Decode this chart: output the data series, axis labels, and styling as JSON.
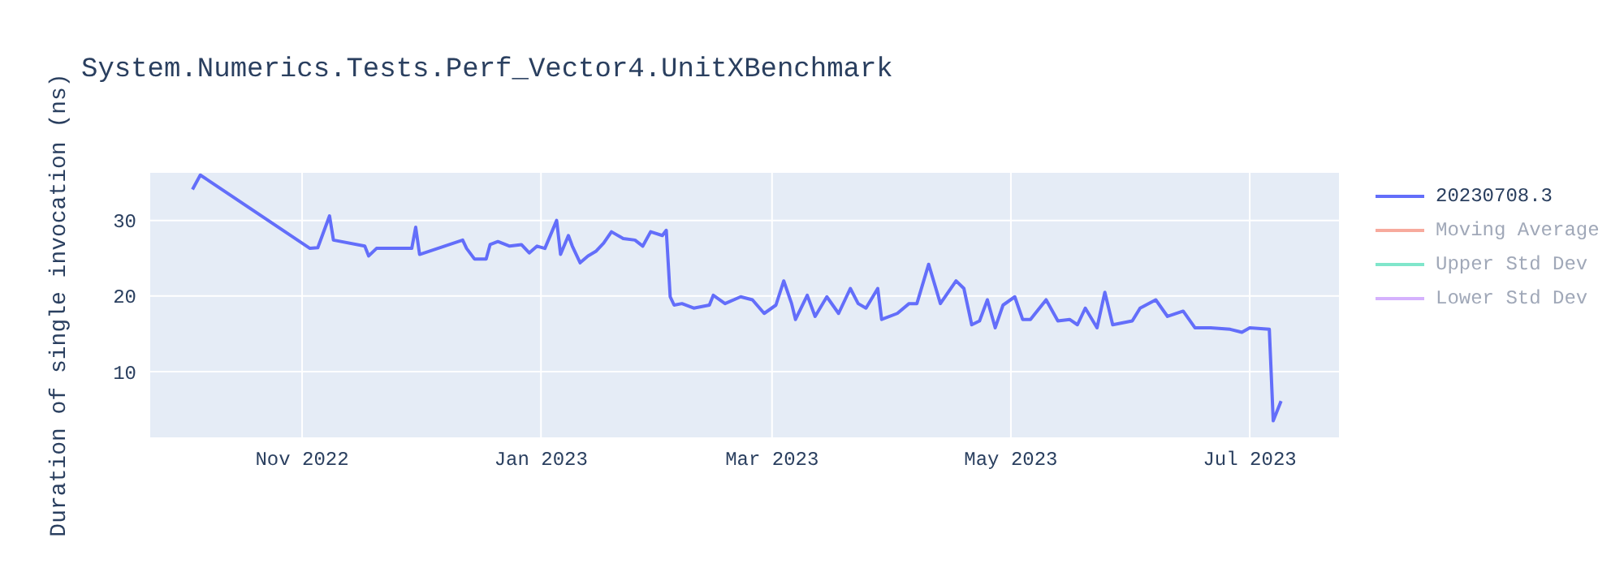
{
  "chart_data": {
    "type": "line",
    "title": "System.Numerics.Tests.Perf_Vector4.UnitXBenchmark",
    "ylabel": "Duration of single invocation (ns)",
    "x": [
      "2022-10-04",
      "2022-10-06",
      "2022-11-03",
      "2022-11-05",
      "2022-11-08",
      "2022-11-09",
      "2022-11-17",
      "2022-11-18",
      "2022-11-20",
      "2022-11-29",
      "2022-11-30",
      "2022-12-01",
      "2022-12-12",
      "2022-12-13",
      "2022-12-15",
      "2022-12-18",
      "2022-12-19",
      "2022-12-21",
      "2022-12-24",
      "2022-12-27",
      "2022-12-29",
      "2022-12-31",
      "2023-01-02",
      "2023-01-05",
      "2023-01-06",
      "2023-01-08",
      "2023-01-09",
      "2023-01-11",
      "2023-01-13",
      "2023-01-15",
      "2023-01-17",
      "2023-01-19",
      "2023-01-22",
      "2023-01-25",
      "2023-01-27",
      "2023-01-29",
      "2023-02-01",
      "2023-02-02",
      "2023-02-03",
      "2023-02-04",
      "2023-02-06",
      "2023-02-09",
      "2023-02-13",
      "2023-02-14",
      "2023-02-17",
      "2023-02-21",
      "2023-02-24",
      "2023-02-27",
      "2023-03-02",
      "2023-03-04",
      "2023-03-06",
      "2023-03-07",
      "2023-03-10",
      "2023-03-12",
      "2023-03-15",
      "2023-03-18",
      "2023-03-21",
      "2023-03-23",
      "2023-03-25",
      "2023-03-28",
      "2023-03-29",
      "2023-04-02",
      "2023-04-05",
      "2023-04-07",
      "2023-04-10",
      "2023-04-13",
      "2023-04-17",
      "2023-04-19",
      "2023-04-21",
      "2023-04-23",
      "2023-04-25",
      "2023-04-27",
      "2023-04-29",
      "2023-05-02",
      "2023-05-04",
      "2023-05-06",
      "2023-05-10",
      "2023-05-13",
      "2023-05-16",
      "2023-05-18",
      "2023-05-20",
      "2023-05-23",
      "2023-05-25",
      "2023-05-27",
      "2023-06-01",
      "2023-06-03",
      "2023-06-07",
      "2023-06-10",
      "2023-06-14",
      "2023-06-17",
      "2023-06-21",
      "2023-06-26",
      "2023-06-29",
      "2023-07-01",
      "2023-07-06",
      "2023-07-07",
      "2023-07-09"
    ],
    "series": [
      {
        "name": "20230708.3",
        "color": "#636efa",
        "values": [
          34.1,
          36,
          26.3,
          26.4,
          30.6,
          27.4,
          26.6,
          25.3,
          26.3,
          26.3,
          29.1,
          25.5,
          27.4,
          26.3,
          24.9,
          24.9,
          26.8,
          27.2,
          26.6,
          26.8,
          25.7,
          26.6,
          26.3,
          30,
          25.5,
          28,
          26.6,
          24.4,
          25.3,
          25.9,
          27,
          28.5,
          27.6,
          27.4,
          26.6,
          28.5,
          28,
          28.7,
          19.9,
          18.8,
          19,
          18.4,
          18.8,
          20.1,
          19,
          19.9,
          19.5,
          17.7,
          18.8,
          22,
          19,
          16.9,
          20.1,
          17.3,
          19.9,
          17.7,
          21,
          19,
          18.4,
          21,
          16.9,
          17.7,
          19,
          19,
          24.2,
          19,
          22,
          21,
          16.2,
          16.7,
          19.5,
          15.8,
          18.8,
          19.9,
          16.9,
          16.9,
          19.5,
          16.7,
          16.9,
          16.2,
          18.4,
          15.8,
          20.5,
          16.2,
          16.7,
          18.4,
          19.5,
          17.3,
          18,
          15.8,
          15.8,
          15.6,
          15.2,
          15.8,
          15.6,
          3.5,
          6.1
        ]
      },
      {
        "name": "Moving Average",
        "color": "#f7aa9d",
        "values": [
          null,
          null,
          null,
          null,
          null,
          null,
          null,
          null,
          null,
          null,
          null,
          null,
          null,
          null,
          null,
          null,
          null,
          null,
          null,
          null,
          null,
          null,
          null,
          null,
          null,
          null,
          null,
          null,
          null,
          null,
          null,
          null,
          null,
          null,
          null,
          null,
          null,
          null,
          null,
          null,
          null,
          null,
          null,
          null,
          null,
          null,
          null,
          null,
          null,
          null,
          null,
          null,
          null,
          null,
          null,
          null,
          null,
          null,
          null,
          null,
          null,
          null,
          null,
          null,
          null,
          null,
          null,
          null,
          null,
          null,
          null,
          null,
          null,
          null,
          null,
          null,
          null,
          null,
          null,
          null,
          null,
          null,
          null,
          null,
          null,
          null,
          null,
          null,
          null,
          null,
          null,
          null,
          null,
          null,
          null,
          null,
          null
        ]
      },
      {
        "name": "Upper Std Dev",
        "color": "#80e6cb",
        "values": [
          null,
          null,
          null,
          null,
          null,
          null,
          null,
          null,
          null,
          null,
          null,
          null,
          null,
          null,
          null,
          null,
          null,
          null,
          null,
          null,
          null,
          null,
          null,
          null,
          null,
          null,
          null,
          null,
          null,
          null,
          null,
          null,
          null,
          null,
          null,
          null,
          null,
          null,
          null,
          null,
          null,
          null,
          null,
          null,
          null,
          null,
          null,
          null,
          null,
          null,
          null,
          null,
          null,
          null,
          null,
          null,
          null,
          null,
          null,
          null,
          null,
          null,
          null,
          null,
          null,
          null,
          null,
          null,
          null,
          null,
          null,
          null,
          null,
          null,
          null,
          null,
          null,
          null,
          null,
          null,
          null,
          null,
          null,
          null,
          null,
          null,
          null,
          null,
          null,
          null,
          null,
          null,
          null,
          null,
          null,
          null,
          null
        ]
      },
      {
        "name": "Lower Std Dev",
        "color": "#d5b1fd",
        "values": [
          null,
          null,
          null,
          null,
          null,
          null,
          null,
          null,
          null,
          null,
          null,
          null,
          null,
          null,
          null,
          null,
          null,
          null,
          null,
          null,
          null,
          null,
          null,
          null,
          null,
          null,
          null,
          null,
          null,
          null,
          null,
          null,
          null,
          null,
          null,
          null,
          null,
          null,
          null,
          null,
          null,
          null,
          null,
          null,
          null,
          null,
          null,
          null,
          null,
          null,
          null,
          null,
          null,
          null,
          null,
          null,
          null,
          null,
          null,
          null,
          null,
          null,
          null,
          null,
          null,
          null,
          null,
          null,
          null,
          null,
          null,
          null,
          null,
          null,
          null,
          null,
          null,
          null,
          null,
          null,
          null,
          null,
          null,
          null,
          null,
          null,
          null,
          null,
          null,
          null,
          null,
          null,
          null,
          null,
          null,
          null,
          null
        ]
      }
    ],
    "xlim": [
      "2022-09-23",
      "2023-07-24"
    ],
    "xticks": [
      {
        "value": "2022-11-01",
        "label": "Nov 2022"
      },
      {
        "value": "2023-01-01",
        "label": "Jan 2023"
      },
      {
        "value": "2023-03-01",
        "label": "Mar 2023"
      },
      {
        "value": "2023-05-01",
        "label": "May 2023"
      },
      {
        "value": "2023-07-01",
        "label": "Jul 2023"
      }
    ],
    "ylim": [
      1.2,
      36.4
    ],
    "yticks": [
      10,
      20,
      30
    ],
    "grid": true,
    "legend": "top right"
  }
}
